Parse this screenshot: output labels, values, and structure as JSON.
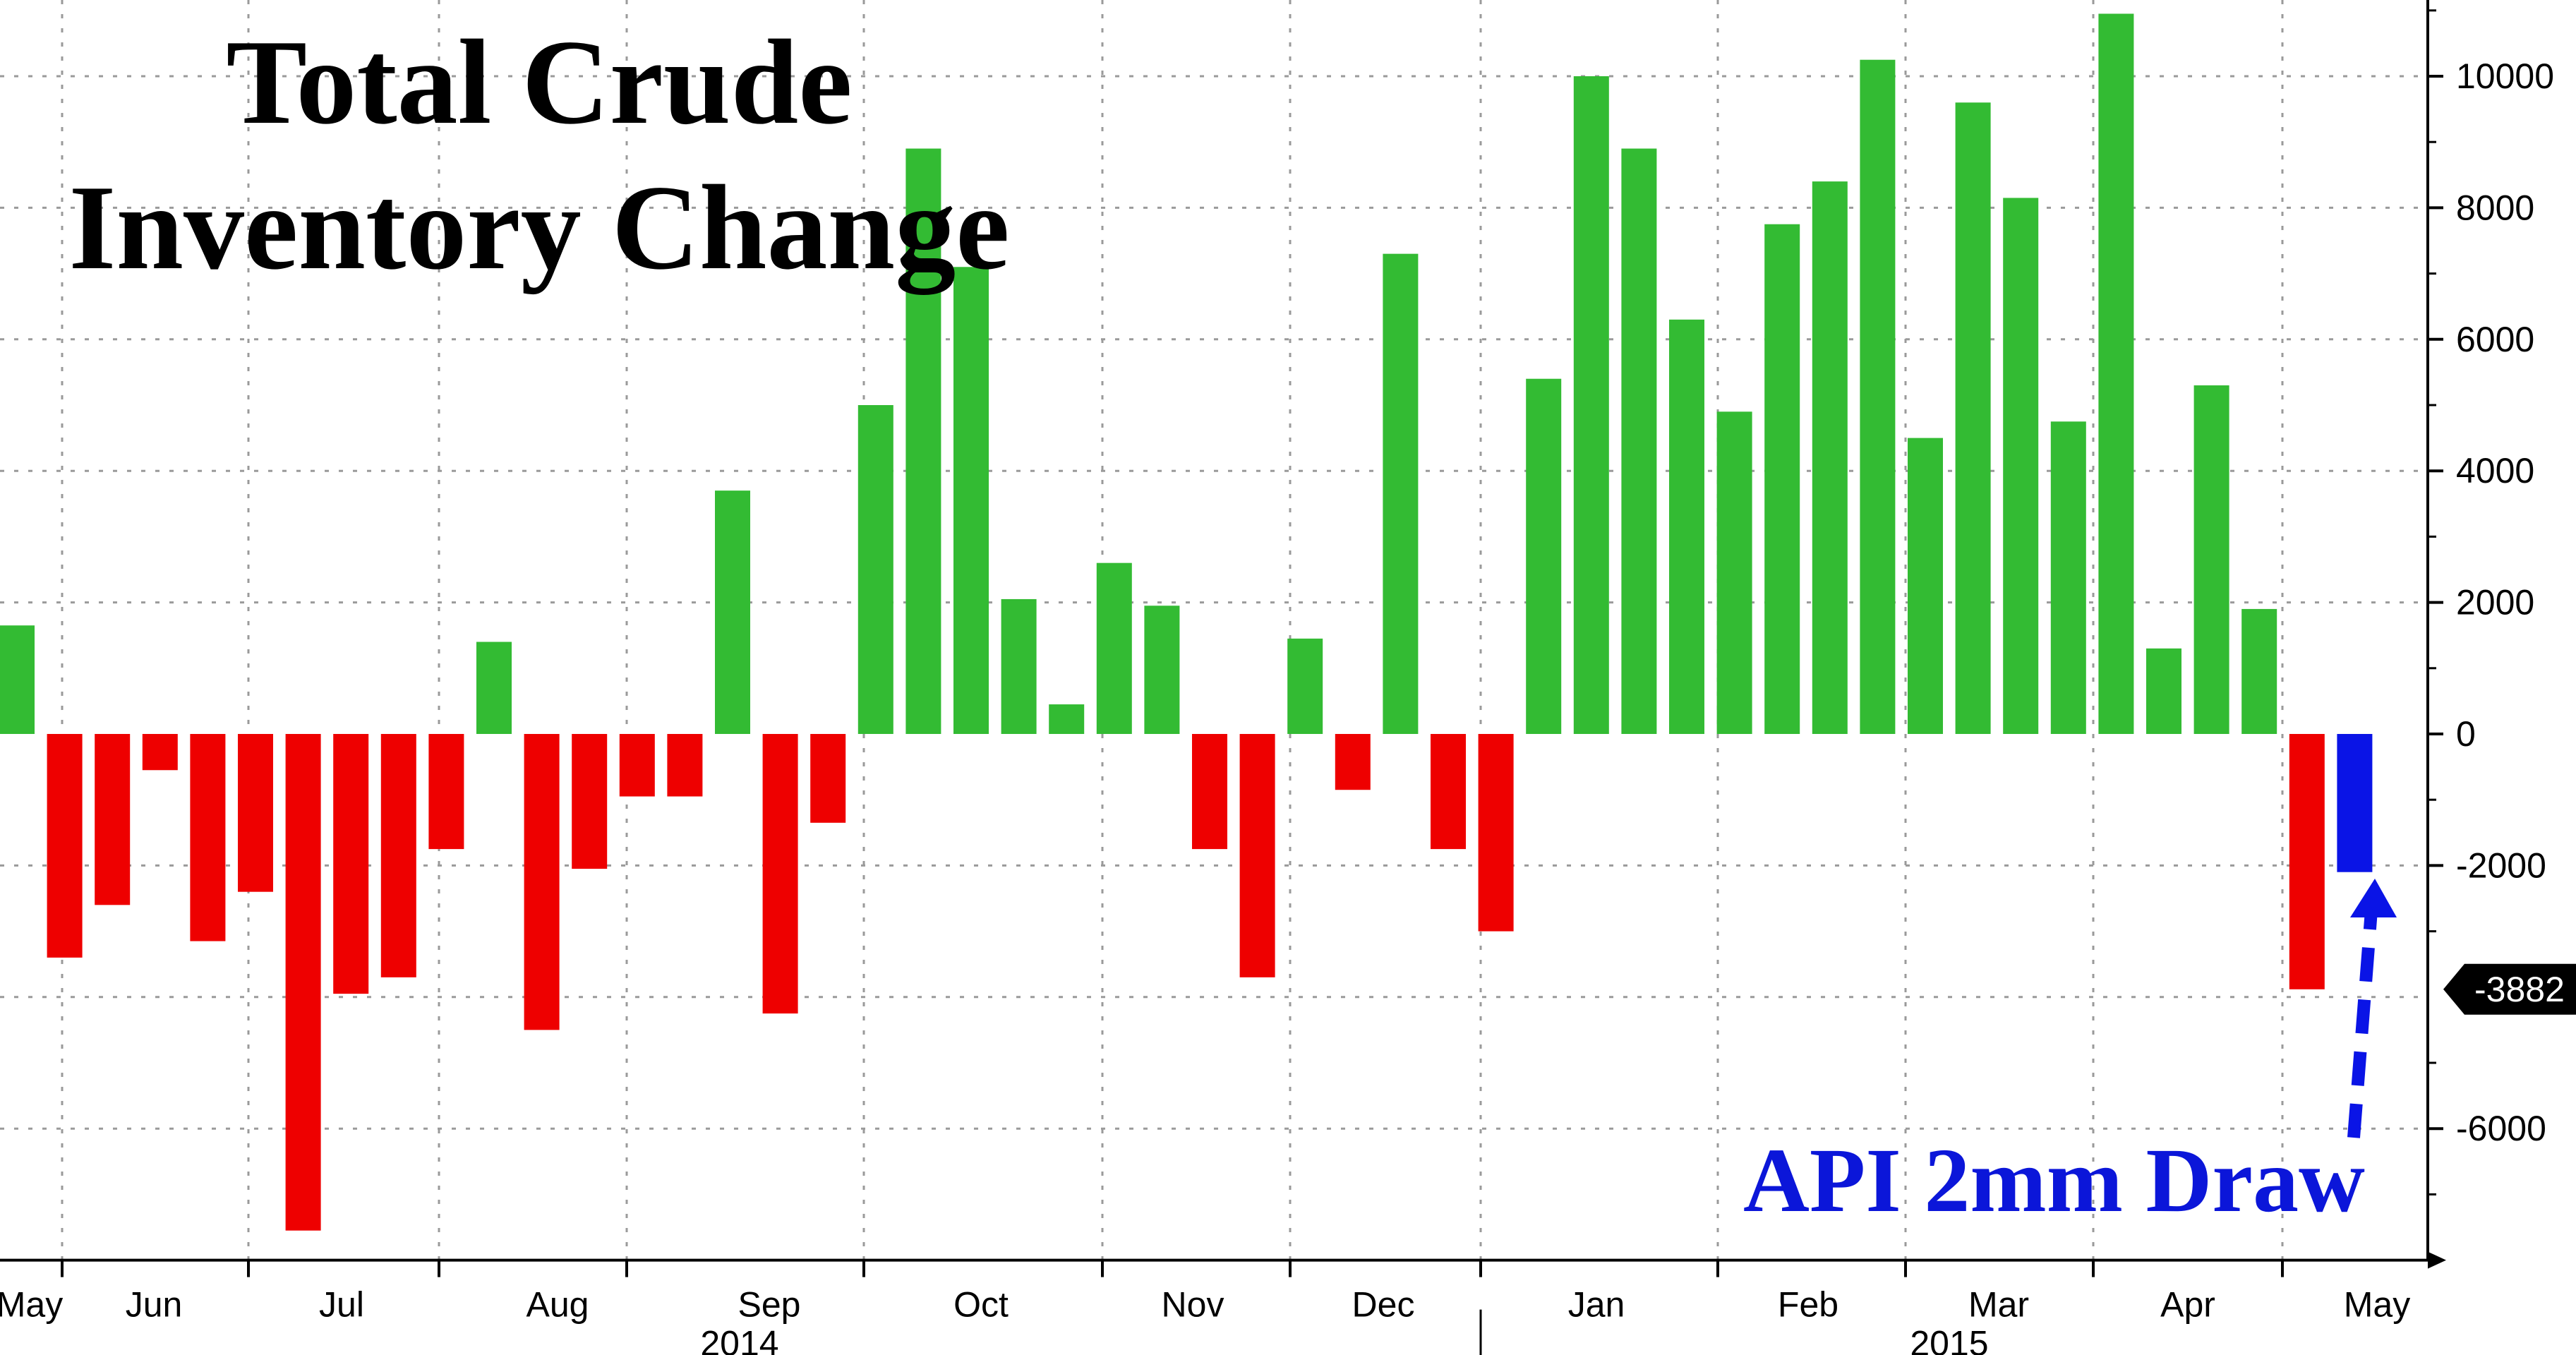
{
  "chart_data": {
    "type": "bar",
    "title_lines": [
      "Total Crude",
      "Inventory Change"
    ],
    "annotation": "API 2mm Draw",
    "last_value_label": "-3882",
    "x_month_labels": [
      "May",
      "Jun",
      "Jul",
      "Aug",
      "Sep",
      "Oct",
      "Nov",
      "Dec",
      "Jan",
      "Feb",
      "Mar",
      "Apr",
      "May"
    ],
    "x_year_labels": [
      "2014",
      "2015"
    ],
    "yticks": [
      10000,
      8000,
      6000,
      4000,
      2000,
      0,
      -2000,
      -6000
    ],
    "ylim": [
      -8000,
      11000
    ],
    "grid": true,
    "colors": {
      "build": "#33bb33",
      "draw": "#ee0000",
      "api": "#0a14e6"
    },
    "series": [
      {
        "values": [
          1650,
          -3400,
          -2600,
          -550,
          -3150,
          -2400,
          -7550,
          -3950,
          -3700,
          -1750,
          1400,
          -4500,
          -2050,
          -950,
          -950,
          3700,
          -4250,
          -1350,
          5000,
          8900,
          7100,
          2050,
          450,
          2600,
          1950,
          -1750,
          -3700,
          1450,
          -850,
          7300,
          -1750,
          -3000,
          5400,
          10000,
          8900,
          6300,
          4900,
          7750,
          8400,
          10250,
          4500,
          9600,
          8150,
          4750,
          10950,
          1300,
          5300,
          1900,
          -3882
        ]
      },
      {
        "name": "API",
        "values": [
          -2100
        ]
      }
    ]
  }
}
